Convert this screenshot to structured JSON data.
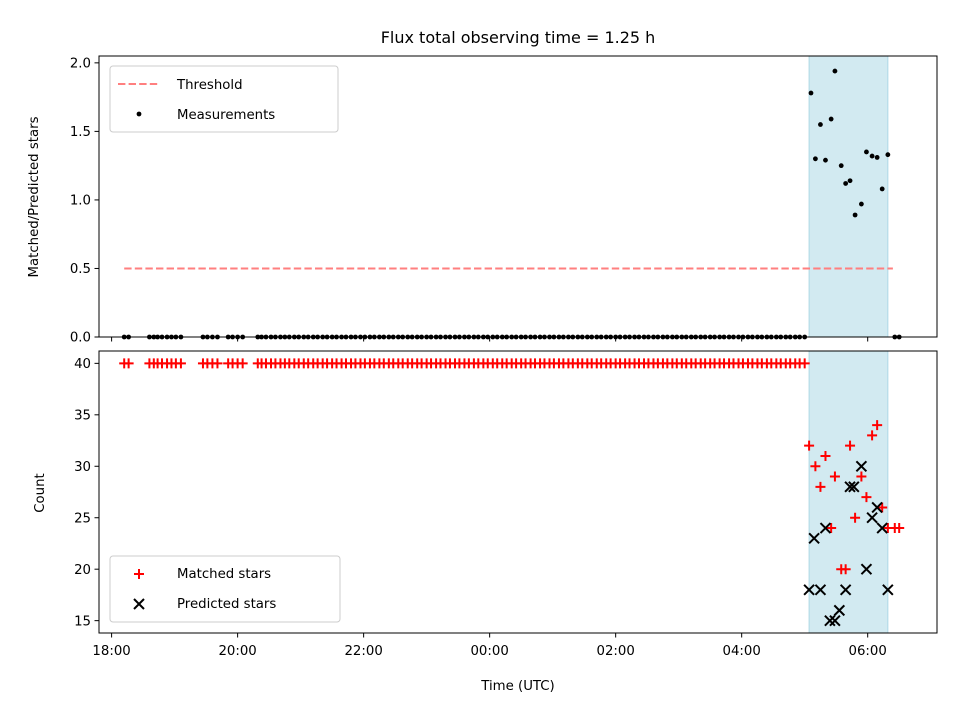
{
  "chart_data": [
    {
      "type": "scatter",
      "title": "Flux total observing time = 1.25 h",
      "xlabel": "",
      "ylabel": "Matched/Predicted stars",
      "xlim_hours": [
        -6.2,
        7.1
      ],
      "ylim": [
        0,
        2.05
      ],
      "yticks": [
        0.0,
        0.5,
        1.0,
        1.5,
        2.0
      ],
      "ytick_labels": [
        "0.0",
        "0.5",
        "1.0",
        "1.5",
        "2.0"
      ],
      "shaded_interval_hours": [
        5.07,
        6.32
      ],
      "shade_color": "#add8e6",
      "threshold": {
        "name": "Threshold",
        "y": 0.5,
        "x_range_hours": [
          -5.8,
          6.4
        ],
        "color": "#ff7f7f",
        "style": "dashed"
      },
      "legend": {
        "placement": "top-left",
        "entries": [
          "Threshold",
          "Measurements"
        ]
      },
      "series": [
        {
          "name": "Measurements",
          "color": "#000000",
          "marker": "dot",
          "zero_points_hours": [
            -5.8,
            -5.73,
            -5.4,
            -5.33,
            -5.27,
            -5.2,
            -5.12,
            -5.05,
            -4.98,
            -4.9,
            -4.55,
            -4.48,
            -4.4,
            -4.32,
            -4.15,
            -4.08,
            -4.0,
            -3.92,
            -3.68,
            -3.62,
            -3.55,
            -3.47,
            -3.4,
            -3.32,
            -3.25,
            -3.18,
            -3.1,
            -3.03,
            -2.95,
            -2.88,
            -2.8,
            -2.73,
            -2.65,
            -2.58,
            -2.5,
            -2.43,
            -2.35,
            -2.28,
            -2.2,
            -2.13,
            -2.05,
            -1.98,
            -1.9,
            -1.83,
            -1.75,
            -1.68,
            -1.6,
            -1.53,
            -1.45,
            -1.38,
            -1.3,
            -1.23,
            -1.15,
            -1.08,
            -1.0,
            -0.93,
            -0.85,
            -0.78,
            -0.7,
            -0.63,
            -0.55,
            -0.48,
            -0.4,
            -0.33,
            -0.25,
            -0.18,
            -0.1,
            -0.03,
            0.05,
            0.12,
            0.2,
            0.27,
            0.35,
            0.42,
            0.5,
            0.57,
            0.65,
            0.72,
            0.8,
            0.87,
            0.95,
            1.02,
            1.1,
            1.17,
            1.25,
            1.32,
            1.4,
            1.47,
            1.55,
            1.62,
            1.7,
            1.77,
            1.85,
            1.92,
            2.0,
            2.07,
            2.15,
            2.22,
            2.3,
            2.37,
            2.45,
            2.52,
            2.6,
            2.67,
            2.75,
            2.82,
            2.9,
            2.97,
            3.05,
            3.12,
            3.2,
            3.27,
            3.35,
            3.42,
            3.5,
            3.57,
            3.65,
            3.72,
            3.8,
            3.87,
            3.95,
            4.02,
            4.1,
            4.17,
            4.25,
            4.32,
            4.4,
            4.47,
            4.55,
            4.62,
            4.7,
            4.77,
            4.85,
            4.92,
            5.0,
            6.43,
            6.5
          ],
          "points": [
            {
              "x": 5.1,
              "y": 1.78
            },
            {
              "x": 5.17,
              "y": 1.3
            },
            {
              "x": 5.25,
              "y": 1.55
            },
            {
              "x": 5.33,
              "y": 1.29
            },
            {
              "x": 5.42,
              "y": 1.59
            },
            {
              "x": 5.48,
              "y": 1.94
            },
            {
              "x": 5.58,
              "y": 1.25
            },
            {
              "x": 5.65,
              "y": 1.12
            },
            {
              "x": 5.72,
              "y": 1.14
            },
            {
              "x": 5.8,
              "y": 0.89
            },
            {
              "x": 5.9,
              "y": 0.97
            },
            {
              "x": 5.98,
              "y": 1.35
            },
            {
              "x": 6.07,
              "y": 1.32
            },
            {
              "x": 6.15,
              "y": 1.31
            },
            {
              "x": 6.23,
              "y": 1.08
            },
            {
              "x": 6.32,
              "y": 1.33
            }
          ]
        }
      ]
    },
    {
      "type": "scatter",
      "title": "",
      "xlabel": "Time (UTC)",
      "ylabel": "Count",
      "xlim_hours": [
        -6.2,
        7.1
      ],
      "ylim": [
        13.8,
        41.2
      ],
      "yticks": [
        15,
        20,
        25,
        30,
        35,
        40
      ],
      "ytick_labels": [
        "15",
        "20",
        "25",
        "30",
        "35",
        "40"
      ],
      "xticks_hours": [
        -6,
        -4,
        -2,
        0,
        2,
        4,
        6
      ],
      "xtick_labels": [
        "18:00",
        "20:00",
        "22:00",
        "00:00",
        "02:00",
        "04:00",
        "06:00"
      ],
      "shaded_interval_hours": [
        5.07,
        6.32
      ],
      "legend": {
        "placement": "bottom-left",
        "entries": [
          "Matched stars",
          "Predicted stars"
        ]
      },
      "series": [
        {
          "name": "Matched stars",
          "color": "#ff0000",
          "marker": "plus",
          "constant_y": 40,
          "constant_x_hours": [
            -5.8,
            -5.73,
            -5.4,
            -5.33,
            -5.27,
            -5.2,
            -5.12,
            -5.05,
            -4.98,
            -4.9,
            -4.55,
            -4.48,
            -4.4,
            -4.32,
            -4.15,
            -4.08,
            -4.0,
            -3.92,
            -3.68,
            -3.62,
            -3.55,
            -3.47,
            -3.4,
            -3.32,
            -3.25,
            -3.18,
            -3.1,
            -3.03,
            -2.95,
            -2.88,
            -2.8,
            -2.73,
            -2.65,
            -2.58,
            -2.5,
            -2.43,
            -2.35,
            -2.28,
            -2.2,
            -2.13,
            -2.05,
            -1.98,
            -1.9,
            -1.83,
            -1.75,
            -1.68,
            -1.6,
            -1.53,
            -1.45,
            -1.38,
            -1.3,
            -1.23,
            -1.15,
            -1.08,
            -1.0,
            -0.93,
            -0.85,
            -0.78,
            -0.7,
            -0.63,
            -0.55,
            -0.48,
            -0.4,
            -0.33,
            -0.25,
            -0.18,
            -0.1,
            -0.03,
            0.05,
            0.12,
            0.2,
            0.27,
            0.35,
            0.42,
            0.5,
            0.57,
            0.65,
            0.72,
            0.8,
            0.87,
            0.95,
            1.02,
            1.1,
            1.17,
            1.25,
            1.32,
            1.4,
            1.47,
            1.55,
            1.62,
            1.7,
            1.77,
            1.85,
            1.92,
            2.0,
            2.07,
            2.15,
            2.22,
            2.3,
            2.37,
            2.45,
            2.52,
            2.6,
            2.67,
            2.75,
            2.82,
            2.9,
            2.97,
            3.05,
            3.12,
            3.2,
            3.27,
            3.35,
            3.42,
            3.5,
            3.57,
            3.65,
            3.72,
            3.8,
            3.87,
            3.95,
            4.02,
            4.1,
            4.17,
            4.25,
            4.32,
            4.4,
            4.47,
            4.55,
            4.62,
            4.7,
            4.77,
            4.85,
            4.92,
            5.0
          ],
          "points": [
            {
              "x": 5.07,
              "y": 32
            },
            {
              "x": 5.17,
              "y": 30
            },
            {
              "x": 5.25,
              "y": 28
            },
            {
              "x": 5.33,
              "y": 31
            },
            {
              "x": 5.42,
              "y": 24
            },
            {
              "x": 5.48,
              "y": 29
            },
            {
              "x": 5.58,
              "y": 20
            },
            {
              "x": 5.65,
              "y": 20
            },
            {
              "x": 5.72,
              "y": 32
            },
            {
              "x": 5.8,
              "y": 25
            },
            {
              "x": 5.9,
              "y": 29
            },
            {
              "x": 5.98,
              "y": 27
            },
            {
              "x": 6.07,
              "y": 33
            },
            {
              "x": 6.15,
              "y": 34
            },
            {
              "x": 6.23,
              "y": 26
            },
            {
              "x": 6.32,
              "y": 24
            },
            {
              "x": 6.43,
              "y": 24
            },
            {
              "x": 6.5,
              "y": 24
            }
          ]
        },
        {
          "name": "Predicted stars",
          "color": "#000000",
          "marker": "x",
          "points": [
            {
              "x": 5.07,
              "y": 18
            },
            {
              "x": 5.15,
              "y": 23
            },
            {
              "x": 5.25,
              "y": 18
            },
            {
              "x": 5.33,
              "y": 24
            },
            {
              "x": 5.4,
              "y": 15
            },
            {
              "x": 5.48,
              "y": 15
            },
            {
              "x": 5.55,
              "y": 16
            },
            {
              "x": 5.65,
              "y": 18
            },
            {
              "x": 5.72,
              "y": 28
            },
            {
              "x": 5.78,
              "y": 28
            },
            {
              "x": 5.9,
              "y": 30
            },
            {
              "x": 5.98,
              "y": 20
            },
            {
              "x": 6.07,
              "y": 25
            },
            {
              "x": 6.15,
              "y": 26
            },
            {
              "x": 6.23,
              "y": 24
            },
            {
              "x": 6.32,
              "y": 18
            }
          ]
        }
      ]
    }
  ]
}
